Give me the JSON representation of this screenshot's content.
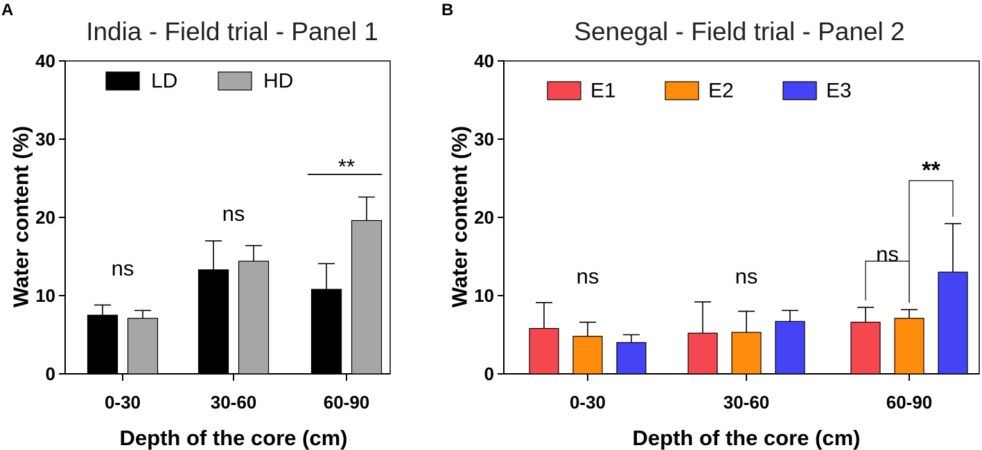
{
  "figure": {
    "panel_letters": [
      "A",
      "B"
    ]
  },
  "colors": {
    "LD": "#000000",
    "HD": "#a6a6a8",
    "E1": "#f5474f",
    "E2": "#ff8c0c",
    "E3": "#4444f5"
  },
  "chart_data": [
    {
      "type": "bar",
      "title": "India - Field trial - Panel 1",
      "xlabel": "Depth of the core (cm)",
      "ylabel": "Water content (%)",
      "ylim": [
        0,
        40
      ],
      "yticks": [
        "0",
        "10",
        "20",
        "30",
        "40"
      ],
      "categories": [
        "0-30",
        "30-60",
        "60-90"
      ],
      "series": [
        {
          "name": "LD",
          "values": [
            7.5,
            13.3,
            10.8
          ],
          "errors": [
            1.3,
            3.7,
            3.3
          ]
        },
        {
          "name": "HD",
          "values": [
            7.1,
            14.4,
            19.6
          ],
          "errors": [
            1.0,
            2.0,
            3.0
          ]
        }
      ],
      "annotations": [
        {
          "category": "0-30",
          "text": "ns",
          "at": 13.5
        },
        {
          "category": "30-60",
          "text": "ns",
          "at": 20.5
        },
        {
          "category": "60-90",
          "text": "**",
          "at": 26.5,
          "bracket": "bar",
          "line_y": 25.5
        }
      ],
      "legend": {
        "position": "top-left",
        "entries": [
          "LD",
          "HD"
        ]
      }
    },
    {
      "type": "bar",
      "title": "Senegal - Field trial - Panel 2",
      "xlabel": "Depth of the core (cm)",
      "ylabel": "Water content (%)",
      "ylim": [
        0,
        40
      ],
      "yticks": [
        "0",
        "10",
        "20",
        "30",
        "40"
      ],
      "categories": [
        "0-30",
        "30-60",
        "60-90"
      ],
      "series": [
        {
          "name": "E1",
          "values": [
            5.8,
            5.2,
            6.6
          ],
          "errors": [
            3.3,
            4.0,
            1.9
          ]
        },
        {
          "name": "E2",
          "values": [
            4.8,
            5.3,
            7.1
          ],
          "errors": [
            1.8,
            2.7,
            1.1
          ]
        },
        {
          "name": "E3",
          "values": [
            4.0,
            6.7,
            13.0
          ],
          "errors": [
            1.0,
            1.4,
            6.2
          ]
        }
      ],
      "annotations": [
        {
          "category": "0-30",
          "text": "ns",
          "at": 12.5
        },
        {
          "category": "30-60",
          "text": "ns",
          "at": 12.5
        },
        {
          "category": "60-90",
          "text": "ns",
          "at": 15.3,
          "bracket": "E1-E2",
          "line_y": 14.4
        },
        {
          "category": "60-90",
          "text": "**",
          "at": 26.0,
          "bracket": "E2-E3",
          "line_y": 24.7
        }
      ],
      "legend": {
        "position": "top",
        "entries": [
          "E1",
          "E2",
          "E3"
        ]
      }
    }
  ]
}
